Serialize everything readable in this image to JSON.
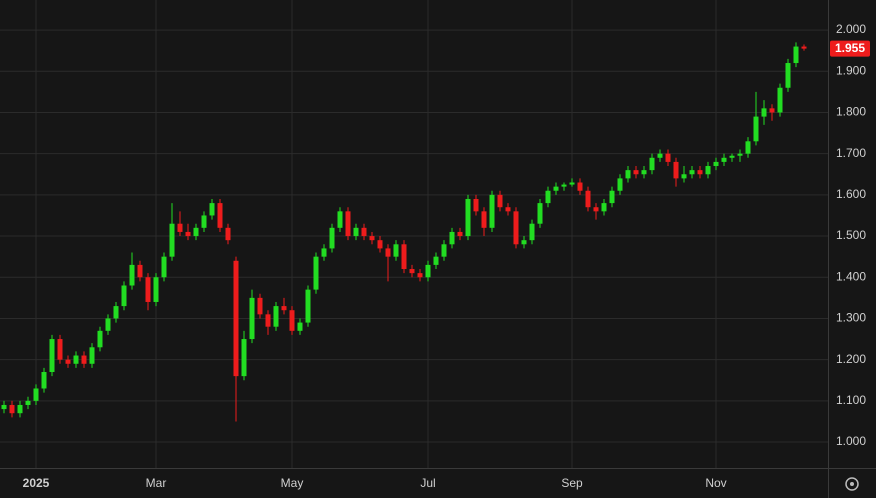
{
  "chart_data": {
    "type": "candlestick",
    "categories": [
      null,
      null,
      null,
      null,
      "2025",
      null,
      null,
      null,
      null,
      null,
      null,
      null,
      null,
      null,
      null,
      null,
      null,
      null,
      null,
      "Mar",
      null,
      null,
      null,
      null,
      null,
      null,
      null,
      null,
      null,
      null,
      null,
      null,
      null,
      null,
      null,
      null,
      "May",
      null,
      null,
      null,
      null,
      null,
      null,
      null,
      null,
      null,
      null,
      null,
      null,
      null,
      null,
      null,
      null,
      "Jul",
      null,
      null,
      null,
      null,
      null,
      null,
      null,
      null,
      null,
      null,
      null,
      null,
      null,
      null,
      null,
      null,
      null,
      "Sep",
      null,
      null,
      null,
      null,
      null,
      null,
      null,
      null,
      null,
      null,
      null,
      null,
      null,
      null,
      null,
      null,
      null,
      "Nov",
      null,
      null,
      null,
      null,
      null,
      null,
      null,
      null,
      null,
      null,
      null
    ],
    "open": [
      1.08,
      1.09,
      1.07,
      1.09,
      1.1,
      1.13,
      1.17,
      1.25,
      1.2,
      1.19,
      1.21,
      1.19,
      1.23,
      1.27,
      1.3,
      1.33,
      1.38,
      1.43,
      1.4,
      1.34,
      1.4,
      1.45,
      1.53,
      1.51,
      1.5,
      1.52,
      1.55,
      1.58,
      1.52,
      1.44,
      1.16,
      1.25,
      1.35,
      1.31,
      1.28,
      1.33,
      1.32,
      1.27,
      1.29,
      1.37,
      1.45,
      1.47,
      1.52,
      1.56,
      1.5,
      1.52,
      1.5,
      1.49,
      1.47,
      1.45,
      1.48,
      1.42,
      1.41,
      1.4,
      1.43,
      1.45,
      1.48,
      1.51,
      1.5,
      1.59,
      1.56,
      1.52,
      1.6,
      1.57,
      1.56,
      1.48,
      1.49,
      1.53,
      1.58,
      1.61,
      1.62,
      1.625,
      1.63,
      1.61,
      1.57,
      1.56,
      1.58,
      1.61,
      1.64,
      1.66,
      1.65,
      1.66,
      1.69,
      1.7,
      1.68,
      1.64,
      1.65,
      1.66,
      1.65,
      1.67,
      1.68,
      1.69,
      1.695,
      1.7,
      1.73,
      1.79,
      1.81,
      1.8,
      1.86,
      1.92,
      1.96
    ],
    "high": [
      1.1,
      1.1,
      1.1,
      1.11,
      1.14,
      1.18,
      1.26,
      1.26,
      1.21,
      1.22,
      1.22,
      1.24,
      1.28,
      1.31,
      1.34,
      1.39,
      1.46,
      1.44,
      1.41,
      1.41,
      1.46,
      1.58,
      1.56,
      1.53,
      1.53,
      1.56,
      1.59,
      1.59,
      1.53,
      1.45,
      1.27,
      1.37,
      1.36,
      1.32,
      1.34,
      1.35,
      1.33,
      1.3,
      1.38,
      1.46,
      1.48,
      1.53,
      1.57,
      1.57,
      1.53,
      1.53,
      1.51,
      1.5,
      1.48,
      1.49,
      1.49,
      1.43,
      1.42,
      1.44,
      1.46,
      1.49,
      1.52,
      1.52,
      1.6,
      1.6,
      1.57,
      1.61,
      1.61,
      1.58,
      1.57,
      1.5,
      1.54,
      1.59,
      1.62,
      1.63,
      1.63,
      1.64,
      1.64,
      1.62,
      1.58,
      1.59,
      1.62,
      1.65,
      1.67,
      1.67,
      1.67,
      1.7,
      1.71,
      1.71,
      1.69,
      1.67,
      1.67,
      1.67,
      1.68,
      1.69,
      1.7,
      1.7,
      1.71,
      1.74,
      1.85,
      1.83,
      1.82,
      1.87,
      1.93,
      1.97,
      1.965
    ],
    "low": [
      1.07,
      1.06,
      1.06,
      1.08,
      1.09,
      1.12,
      1.16,
      1.19,
      1.18,
      1.18,
      1.18,
      1.18,
      1.22,
      1.26,
      1.29,
      1.32,
      1.37,
      1.39,
      1.32,
      1.33,
      1.39,
      1.44,
      1.5,
      1.49,
      1.49,
      1.51,
      1.54,
      1.51,
      1.48,
      1.05,
      1.15,
      1.24,
      1.3,
      1.26,
      1.27,
      1.31,
      1.26,
      1.26,
      1.28,
      1.36,
      1.44,
      1.46,
      1.51,
      1.49,
      1.49,
      1.49,
      1.48,
      1.46,
      1.39,
      1.44,
      1.41,
      1.4,
      1.39,
      1.39,
      1.42,
      1.44,
      1.47,
      1.49,
      1.49,
      1.55,
      1.5,
      1.51,
      1.56,
      1.55,
      1.47,
      1.47,
      1.48,
      1.52,
      1.57,
      1.6,
      1.61,
      1.62,
      1.6,
      1.56,
      1.54,
      1.55,
      1.57,
      1.6,
      1.63,
      1.64,
      1.64,
      1.65,
      1.68,
      1.67,
      1.62,
      1.63,
      1.64,
      1.64,
      1.64,
      1.66,
      1.67,
      1.68,
      1.68,
      1.69,
      1.72,
      1.77,
      1.78,
      1.79,
      1.85,
      1.91,
      1.95
    ],
    "close": [
      1.09,
      1.07,
      1.09,
      1.1,
      1.13,
      1.17,
      1.25,
      1.2,
      1.19,
      1.21,
      1.19,
      1.23,
      1.27,
      1.3,
      1.33,
      1.38,
      1.43,
      1.4,
      1.34,
      1.4,
      1.45,
      1.53,
      1.51,
      1.5,
      1.52,
      1.55,
      1.58,
      1.52,
      1.49,
      1.16,
      1.25,
      1.35,
      1.31,
      1.28,
      1.33,
      1.32,
      1.27,
      1.29,
      1.37,
      1.45,
      1.47,
      1.52,
      1.56,
      1.5,
      1.52,
      1.5,
      1.49,
      1.47,
      1.45,
      1.48,
      1.42,
      1.41,
      1.4,
      1.43,
      1.45,
      1.48,
      1.51,
      1.5,
      1.59,
      1.56,
      1.52,
      1.6,
      1.57,
      1.56,
      1.48,
      1.49,
      1.53,
      1.58,
      1.61,
      1.62,
      1.625,
      1.63,
      1.61,
      1.57,
      1.56,
      1.58,
      1.61,
      1.64,
      1.66,
      1.65,
      1.66,
      1.69,
      1.7,
      1.68,
      1.64,
      1.65,
      1.66,
      1.65,
      1.67,
      1.68,
      1.69,
      1.695,
      1.7,
      1.73,
      1.79,
      1.81,
      1.8,
      1.86,
      1.92,
      1.96,
      1.955
    ],
    "up_color": "#22dd22",
    "down_color": "#ee1c1c",
    "ylim": [
      0.937,
      2.073
    ],
    "yticks": [
      {
        "value": 1.0,
        "label": "1.000"
      },
      {
        "value": 1.1,
        "label": "1.100"
      },
      {
        "value": 1.2,
        "label": "1.200"
      },
      {
        "value": 1.3,
        "label": "1.300"
      },
      {
        "value": 1.4,
        "label": "1.400"
      },
      {
        "value": 1.5,
        "label": "1.500"
      },
      {
        "value": 1.6,
        "label": "1.600"
      },
      {
        "value": 1.7,
        "label": "1.700"
      },
      {
        "value": 1.8,
        "label": "1.800"
      },
      {
        "value": 1.9,
        "label": "1.900"
      },
      {
        "value": 2.0,
        "label": "2.000"
      }
    ],
    "grid": true
  }
}
